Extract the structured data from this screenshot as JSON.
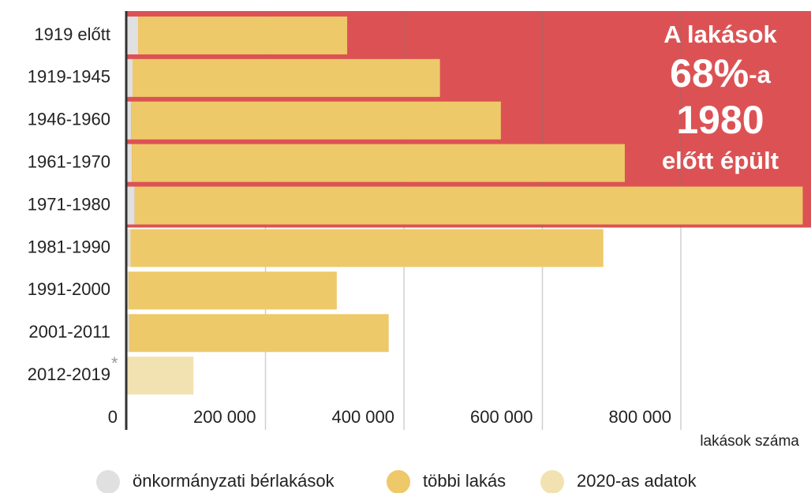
{
  "chart_data": {
    "type": "stacked_barh",
    "categories": [
      "1919 előtt",
      "1919-1945",
      "1946-1960",
      "1961-1970",
      "1971-1980",
      "1981-1990",
      "1991-2000",
      "2001-2011",
      "2012-2019"
    ],
    "category_note": "*",
    "series": [
      {
        "name": "önkormányzati bérlakások",
        "color": "#e0e0e0",
        "values": [
          16000,
          8000,
          6000,
          7000,
          11000,
          5000,
          2000,
          3000,
          null
        ]
      },
      {
        "name": "többi lakás",
        "color": "#eec96a",
        "values": [
          302000,
          444000,
          534000,
          712000,
          965000,
          683000,
          301000,
          375000,
          null
        ]
      },
      {
        "name": "2020-as adatok",
        "color": "#f2e2b1",
        "values": [
          null,
          null,
          null,
          null,
          null,
          null,
          null,
          null,
          96000
        ]
      }
    ],
    "xlim": [
      0,
      980000
    ],
    "xticks": [
      0,
      {
        "value": 200000,
        "label": "200 000"
      },
      {
        "value": 400000,
        "label": "400 000"
      },
      {
        "value": 600000,
        "label": "600 000"
      },
      {
        "value": 800000,
        "label": "800 000"
      }
    ],
    "xlabel": "lakások száma",
    "grid": true,
    "highlight_color": "#dc5254",
    "annotation": [
      "A lakások",
      "68%",
      "-a",
      "1980",
      "előtt épült"
    ],
    "legend": "bottom"
  }
}
